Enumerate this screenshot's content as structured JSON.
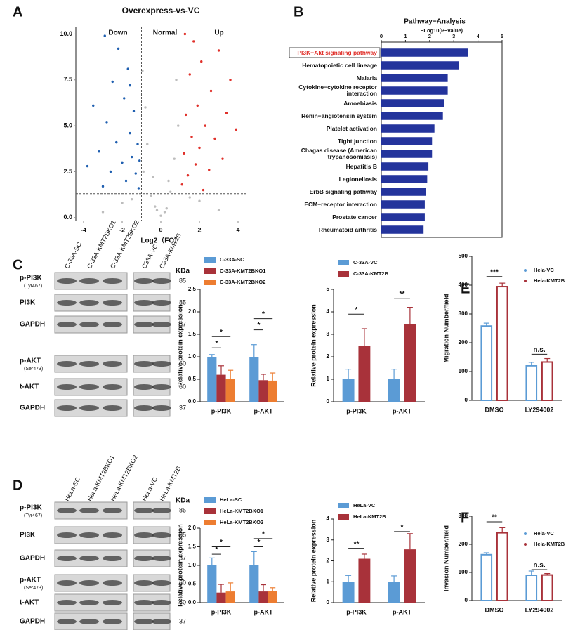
{
  "panel_labels": [
    "A",
    "B",
    "C",
    "D",
    "E",
    "F"
  ],
  "blots": [
    {
      "lanes": [
        "C-33A-SC",
        "C-33A-KMT2BKO1",
        "C-33A-KMT2BKO2",
        "C33A-VC",
        "C33A-KMT2B"
      ],
      "unit": "KDa",
      "rows": [
        {
          "label": "p-PI3K",
          "site": "(Tyr467)",
          "kda": 85
        },
        {
          "label": "PI3K",
          "kda": 85
        },
        {
          "label": "GAPDH",
          "kda": 37
        },
        {
          "label": "p-AKT",
          "site": "(Ser473)",
          "kda": 60
        },
        {
          "label": "t-AKT",
          "kda": 60
        },
        {
          "label": "GAPDH",
          "kda": 37
        }
      ]
    },
    {
      "lanes": [
        "HeLa-SC",
        "HeLa-KMT2BKO1",
        "HeLa-KMT2BKO2",
        "HeLa-VC",
        "HeLa-KMT2B"
      ],
      "unit": "KDa",
      "rows": [
        {
          "label": "p-PI3K",
          "site": "(Tyr467)",
          "kda": 85
        },
        {
          "label": "PI3K",
          "kda": 85
        },
        {
          "label": "GAPDH",
          "kda": 37
        },
        {
          "label": "p-AKT",
          "site": "(Ser473)",
          "kda": 60
        },
        {
          "label": "t-AKT",
          "kda": 60
        },
        {
          "label": "GAPDH",
          "kda": 37
        }
      ]
    }
  ],
  "chart_data": [
    {
      "type": "scatter",
      "title": "Overexpress-vs-VC",
      "xlabel": "Log2（FC）",
      "xlim": [
        -4.4,
        4.4
      ],
      "ylim": [
        -0.2,
        10.4
      ],
      "xticks": [
        -4,
        -2,
        0,
        2,
        4
      ],
      "yticks": [
        {
          "value": 0,
          "label": "0.0"
        },
        {
          "value": 2.5,
          "label": "2.5"
        },
        {
          "value": 5,
          "label": "5.0"
        },
        {
          "value": 7.5,
          "label": "7.5"
        },
        {
          "value": 10,
          "label": "10.0"
        }
      ],
      "vlines": [
        -1,
        1
      ],
      "hline": 1.3,
      "series": [
        {
          "name": "Down",
          "color": "#1f5fb0",
          "x": [
            -3.8,
            -3.5,
            -3.2,
            -3.0,
            -2.8,
            -2.6,
            -2.5,
            -2.3,
            -2.2,
            -2.0,
            -1.9,
            -1.8,
            -1.7,
            -1.6,
            -1.5,
            -1.4,
            -1.3,
            -1.2,
            -1.15,
            -1.1,
            -2.9,
            -1.6
          ],
          "y": [
            2.8,
            6.1,
            3.6,
            1.7,
            5.2,
            2.5,
            7.4,
            4.1,
            9.2,
            3.0,
            6.5,
            2.0,
            8.1,
            4.6,
            3.3,
            5.8,
            2.4,
            4.0,
            1.6,
            3.1,
            9.9,
            7.2
          ]
        },
        {
          "name": "Normal",
          "color": "#bdbdbd",
          "x": [
            -0.9,
            -0.7,
            -0.5,
            -0.3,
            0,
            0.3,
            0.5,
            0.7,
            0.9,
            -0.8,
            -0.4,
            0.4,
            0.8,
            -0.95,
            -2.0,
            2.0,
            -3.0,
            3.0,
            -1.5,
            1.5,
            0.2,
            -0.2
          ],
          "y": [
            2.5,
            4.0,
            1.2,
            0.6,
            0.1,
            0.5,
            1.4,
            3.2,
            5.0,
            6.0,
            2.2,
            2.0,
            7.5,
            8.0,
            0.8,
            0.9,
            0.3,
            0.4,
            1.0,
            1.1,
            0.3,
            0.4
          ]
        },
        {
          "name": "Up",
          "color": "#e0302a",
          "x": [
            1.1,
            1.2,
            1.3,
            1.4,
            1.5,
            1.6,
            1.7,
            1.8,
            1.9,
            2.0,
            2.1,
            2.3,
            2.5,
            2.6,
            2.8,
            3.0,
            3.2,
            3.4,
            3.6,
            3.9,
            2.2,
            1.25
          ],
          "y": [
            1.8,
            3.5,
            5.6,
            2.3,
            7.8,
            4.4,
            9.6,
            2.9,
            6.1,
            3.8,
            8.5,
            5.0,
            2.6,
            6.9,
            4.3,
            9.1,
            3.2,
            5.7,
            7.5,
            4.8,
            1.5,
            10.0
          ]
        }
      ]
    },
    {
      "type": "hbar",
      "title": "Pathway−Analysis",
      "xlabel": "−Log10(P−value)",
      "xlim": [
        0,
        5
      ],
      "xticks": [
        0,
        1,
        2,
        3,
        4,
        5
      ],
      "color": "#24349c",
      "highlight_color": "#e0302a",
      "highlight_index": 0,
      "categories": [
        "PI3K−Akt signaling pathway",
        "Hematopoietic cell lineage",
        "Malaria",
        "Cytokine−cytokine receptor interaction",
        "Amoebiasis",
        "Renin−angiotensin system",
        "Platelet activation",
        "Tight junction",
        "Chagas disease (American trypanosomiasis)",
        "Hepatitis B",
        "Legionellosis",
        "ErbB signaling pathway",
        "ECM−receptor interaction",
        "Prostate cancer",
        "Rheumatoid arthritis"
      ],
      "values": [
        3.6,
        3.2,
        2.75,
        2.75,
        2.6,
        2.55,
        2.2,
        2.1,
        2.1,
        1.95,
        1.9,
        1.85,
        1.8,
        1.8,
        1.75
      ]
    },
    {
      "type": "bar",
      "style": "filled",
      "ylabel": "Relative protein expression",
      "categories": [
        "p-PI3K",
        "p-AKT"
      ],
      "ylim": [
        0,
        2.5
      ],
      "yticks": [
        {
          "value": 0,
          "label": "0.0"
        },
        {
          "value": 0.5,
          "label": "0.5"
        },
        {
          "value": 1,
          "label": "1.0"
        },
        {
          "value": 1.5,
          "label": "1.5"
        },
        {
          "value": 2,
          "label": "2.0"
        },
        {
          "value": 2.5,
          "label": "2.5"
        }
      ],
      "series": [
        {
          "name": "C-33A-SC",
          "color": "#5b9bd5",
          "values": [
            1.0,
            1.0
          ],
          "errors": [
            0.05,
            0.27
          ]
        },
        {
          "name": "C-33A-KMT2BKO1",
          "color": "#a8323a",
          "values": [
            0.6,
            0.48
          ],
          "errors": [
            0.2,
            0.13
          ]
        },
        {
          "name": "C-33A-KMT2BKO2",
          "color": "#ed7d31",
          "values": [
            0.5,
            0.47
          ],
          "errors": [
            0.2,
            0.17
          ]
        }
      ],
      "annotations": [
        "*",
        "*",
        "*",
        "*"
      ]
    },
    {
      "type": "bar",
      "style": "filled",
      "ylabel": "Relative protein expression",
      "categories": [
        "p-PI3K",
        "p-AKT"
      ],
      "ylim": [
        0,
        5
      ],
      "yticks": [
        0,
        1,
        2,
        3,
        4,
        5
      ],
      "series": [
        {
          "name": "C-33A-VC",
          "color": "#5b9bd5",
          "values": [
            1,
            1
          ],
          "errors": [
            0.45,
            0.45
          ]
        },
        {
          "name": "C-33A-KMT2B",
          "color": "#a8323a",
          "values": [
            2.5,
            3.45
          ],
          "errors": [
            0.75,
            0.75
          ]
        }
      ],
      "annotations": [
        "*",
        "**"
      ]
    },
    {
      "type": "bar",
      "style": "outline",
      "ylabel": "Migration Number/field",
      "categories": [
        "DMSO",
        "LY294002"
      ],
      "ylim": [
        0,
        500
      ],
      "yticks": [
        0,
        100,
        200,
        300,
        400,
        500
      ],
      "series": [
        {
          "name": "Hela-VC",
          "color": "#5b9bd5",
          "values": [
            258,
            120
          ],
          "errors": [
            10,
            12
          ]
        },
        {
          "name": "Hela-KMT2B",
          "color": "#a8323a",
          "values": [
            395,
            133
          ],
          "errors": [
            12,
            12
          ]
        }
      ],
      "annotations": [
        "***",
        "n.s."
      ]
    },
    {
      "type": "bar",
      "style": "filled",
      "ylabel": "Relative protein expression",
      "categories": [
        "p-PI3K",
        "p-AKT"
      ],
      "ylim": [
        0,
        2
      ],
      "yticks": [
        {
          "value": 0,
          "label": "0.0"
        },
        {
          "value": 0.5,
          "label": "0.5"
        },
        {
          "value": 1,
          "label": "1.0"
        },
        {
          "value": 1.5,
          "label": "1.5"
        },
        {
          "value": 2,
          "label": "2.0"
        }
      ],
      "series": [
        {
          "name": "HeLa-SC",
          "color": "#5b9bd5",
          "values": [
            1,
            1
          ],
          "errors": [
            0.2,
            0.37
          ]
        },
        {
          "name": "HeLa-KMT2BKO1",
          "color": "#a8323a",
          "values": [
            0.27,
            0.3
          ],
          "errors": [
            0.22,
            0.18
          ]
        },
        {
          "name": "HeLa-KMT2BKO2",
          "color": "#ed7d31",
          "values": [
            0.3,
            0.32
          ],
          "errors": [
            0.23,
            0.08
          ]
        }
      ],
      "annotations": [
        "*",
        "*",
        "*",
        "*"
      ]
    },
    {
      "type": "bar",
      "style": "filled",
      "ylabel": "Relative protein expression",
      "categories": [
        "p-PI3K",
        "p-AKT"
      ],
      "ylim": [
        0,
        4
      ],
      "yticks": [
        0,
        1,
        2,
        3,
        4
      ],
      "series": [
        {
          "name": "HeLa-VC",
          "color": "#5b9bd5",
          "values": [
            1,
            1
          ],
          "errors": [
            0.3,
            0.28
          ]
        },
        {
          "name": "HeLa-KMT2B",
          "color": "#a8323a",
          "values": [
            2.1,
            2.55
          ],
          "errors": [
            0.22,
            0.75
          ]
        }
      ],
      "annotations": [
        "**",
        "*"
      ]
    },
    {
      "type": "bar",
      "style": "outline",
      "ylabel": "Invasion Number/field",
      "categories": [
        "DMSO",
        "LY294002"
      ],
      "ylim": [
        0,
        300
      ],
      "yticks": [
        0,
        100,
        200,
        300
      ],
      "series": [
        {
          "name": "Hela-VC",
          "color": "#5b9bd5",
          "values": [
            163,
            90
          ],
          "errors": [
            7,
            15
          ]
        },
        {
          "name": "Hela-KMT2B",
          "color": "#a8323a",
          "values": [
            241,
            91
          ],
          "errors": [
            18,
            5
          ]
        }
      ],
      "annotations": [
        "**",
        "n.s."
      ]
    }
  ]
}
